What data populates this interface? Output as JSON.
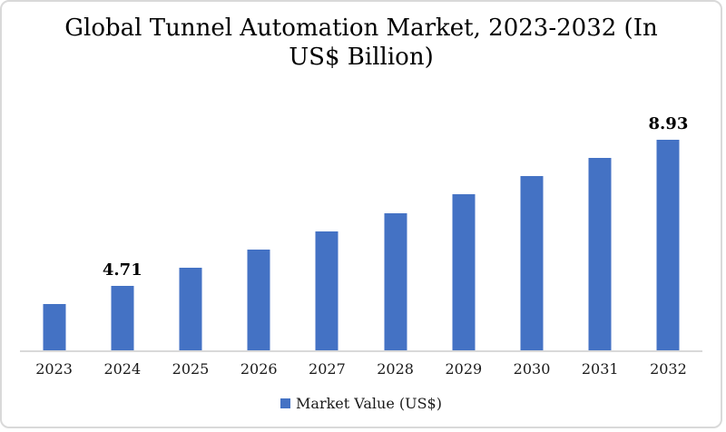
{
  "title": {
    "line1": "Global Tunnel Automation Market, 2023-2032 (In",
    "line2": "US$ Billion)"
  },
  "legend": {
    "label": "Market Value (US$)"
  },
  "colors": {
    "bar": "#4472C4",
    "axis": "#D9D9D9",
    "border": "#D9D9D9",
    "label_text": "#1a1a1a",
    "title_text": "#000000"
  },
  "chart_data": {
    "type": "bar",
    "title": "Global Tunnel Automation Market, 2023-2032 (In US$ Billion)",
    "categories": [
      "2023",
      "2024",
      "2025",
      "2026",
      "2027",
      "2028",
      "2029",
      "2030",
      "2031",
      "2032"
    ],
    "values": [
      4.19,
      4.71,
      5.24,
      5.77,
      6.29,
      6.82,
      7.35,
      7.88,
      8.4,
      8.93
    ],
    "data_labels": [
      "",
      "4.71",
      "",
      "",
      "",
      "",
      "",
      "",
      "",
      "8.93"
    ],
    "xlabel": "",
    "ylabel": "",
    "ylim": [
      2.85,
      9.14
    ],
    "grid": false,
    "y_axis_visible": false,
    "legend_position": "bottom",
    "legend_entries": [
      "Market Value (US$)"
    ],
    "bar_color": "#4472C4"
  }
}
